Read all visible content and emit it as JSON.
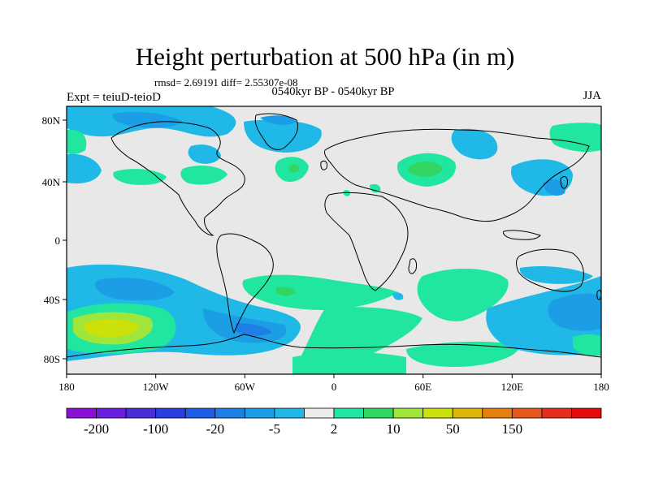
{
  "title": "Height perturbation at 500 hPa (in m)",
  "stats_line": "rmsd= 2.69191 diff= 2.55307e-08",
  "subtitle": "0540kyr BP - 0540kyr BP",
  "experiment": "Expt = teiuD-teioD",
  "season": "JJA",
  "lat_ticks": [
    "80N",
    "40N",
    "0",
    "40S",
    "80S"
  ],
  "lon_ticks": [
    "180",
    "120W",
    "60W",
    "0",
    "60E",
    "120E",
    "180"
  ],
  "colorbar": {
    "colors": [
      "#8a10d8",
      "#6a1ee0",
      "#4a2cd8",
      "#2a3ee0",
      "#1e5ee6",
      "#1e80e6",
      "#1c9ee6",
      "#20b8e6",
      "#ececec",
      "#20e6a0",
      "#30d660",
      "#a0e63a",
      "#cce00a",
      "#e0b40a",
      "#e67e10",
      "#e6581c",
      "#e62e1e",
      "#e60a0a"
    ],
    "labels": [
      "-200",
      "-100",
      "-20",
      "-5",
      "2",
      "10",
      "50",
      "150"
    ]
  },
  "colors": {
    "land_bg": "#e8e8e8",
    "neg_light": "#20b8e6",
    "neg_mid": "#1c9ee6",
    "neg_dark": "#1e80e6",
    "pos_light": "#20e6a0",
    "pos_mid": "#30d660",
    "pos_strong": "#a0e63a",
    "pos_peak": "#cce00a"
  }
}
